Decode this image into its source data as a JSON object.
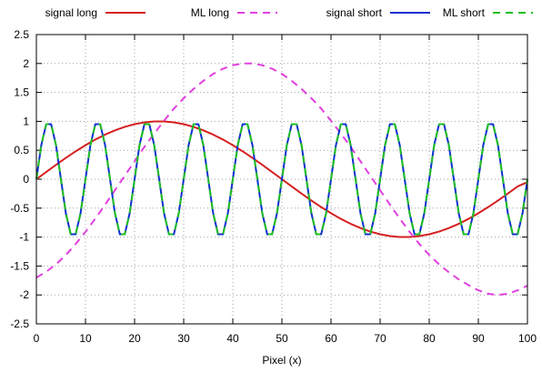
{
  "chart_data": {
    "type": "line",
    "title": "",
    "xlabel": "Pixel (x)",
    "ylabel": "",
    "xlim": [
      0,
      100
    ],
    "ylim": [
      -2.5,
      2.5
    ],
    "xticks": [
      "0",
      "10",
      "20",
      "30",
      "40",
      "50",
      "60",
      "70",
      "80",
      "90",
      "100"
    ],
    "yticks": [
      "2.5",
      "2",
      "1.5",
      "1",
      "0.5",
      "0",
      "-0.5",
      "-1",
      "-1.5",
      "-2",
      "-2.5"
    ],
    "grid": "dotted",
    "legend_position": "top",
    "series": [
      {
        "name": "signal long",
        "color": "#d62020",
        "style": "solid",
        "x": [
          0,
          2,
          4,
          6,
          8,
          10,
          12,
          14,
          16,
          18,
          20,
          22,
          24,
          26,
          28,
          30,
          32,
          34,
          36,
          38,
          40,
          42,
          44,
          46,
          48,
          50,
          52,
          54,
          56,
          58,
          60,
          62,
          64,
          66,
          68,
          70,
          72,
          74,
          76,
          78,
          80,
          82,
          84,
          86,
          88,
          90,
          92,
          94,
          96,
          98,
          100
        ],
        "y": [
          0.0,
          0.125,
          0.249,
          0.368,
          0.482,
          0.588,
          0.685,
          0.771,
          0.844,
          0.905,
          0.951,
          0.982,
          0.998,
          0.998,
          0.982,
          0.951,
          0.905,
          0.844,
          0.771,
          0.685,
          0.588,
          0.482,
          0.368,
          0.249,
          0.125,
          0.0,
          -0.125,
          -0.249,
          -0.368,
          -0.482,
          -0.588,
          -0.685,
          -0.771,
          -0.844,
          -0.905,
          -0.951,
          -0.982,
          -0.998,
          -0.998,
          -0.982,
          -0.951,
          -0.905,
          -0.844,
          -0.771,
          -0.685,
          -0.588,
          -0.482,
          -0.368,
          -0.249,
          -0.125,
          -0.05
        ]
      },
      {
        "name": "ML long",
        "color": "#e040e0",
        "style": "dashed",
        "x": [
          0,
          2,
          4,
          6,
          8,
          10,
          12,
          14,
          16,
          18,
          20,
          22,
          24,
          26,
          28,
          30,
          32,
          34,
          36,
          38,
          40,
          42,
          44,
          46,
          48,
          50,
          52,
          54,
          56,
          58,
          60,
          62,
          64,
          66,
          68,
          70,
          72,
          74,
          76,
          78,
          80,
          82,
          84,
          86,
          88,
          90,
          92,
          94,
          96,
          98,
          100
        ],
        "y": [
          -1.7,
          -1.6,
          -1.47,
          -1.31,
          -1.12,
          -0.91,
          -0.68,
          -0.44,
          -0.19,
          0.06,
          0.31,
          0.56,
          0.79,
          1.01,
          1.22,
          1.4,
          1.56,
          1.7,
          1.82,
          1.91,
          1.97,
          2.0,
          2.0,
          1.97,
          1.91,
          1.82,
          1.7,
          1.56,
          1.4,
          1.22,
          1.01,
          0.79,
          0.56,
          0.31,
          0.06,
          -0.19,
          -0.44,
          -0.68,
          -0.91,
          -1.12,
          -1.31,
          -1.47,
          -1.61,
          -1.73,
          -1.83,
          -1.92,
          -1.98,
          -2.0,
          -1.98,
          -1.92,
          -1.84
        ]
      },
      {
        "name": "signal short",
        "color": "#1030d0",
        "style": "solid",
        "x": [
          0,
          1,
          2,
          3,
          4,
          5,
          6,
          7,
          8,
          9,
          10,
          11,
          12,
          13,
          14,
          15,
          16,
          17,
          18,
          19,
          20,
          21,
          22,
          23,
          24,
          25,
          26,
          27,
          28,
          29,
          30,
          31,
          32,
          33,
          34,
          35,
          36,
          37,
          38,
          39,
          40,
          41,
          42,
          43,
          44,
          45,
          46,
          47,
          48,
          49,
          50,
          51,
          52,
          53,
          54,
          55,
          56,
          57,
          58,
          59,
          60,
          61,
          62,
          63,
          64,
          65,
          66,
          67,
          68,
          69,
          70,
          71,
          72,
          73,
          74,
          75,
          76,
          77,
          78,
          79,
          80,
          81,
          82,
          83,
          84,
          85,
          86,
          87,
          88,
          89,
          90,
          91,
          92,
          93,
          94,
          95,
          96,
          97,
          98,
          99,
          100
        ],
        "y": [
          0.0,
          0.588,
          0.951,
          0.951,
          0.588,
          0.0,
          -0.588,
          -0.951,
          -0.951,
          -0.588,
          0.0,
          0.588,
          0.951,
          0.951,
          0.588,
          0.0,
          -0.588,
          -0.951,
          -0.951,
          -0.588,
          0.0,
          0.588,
          0.951,
          0.951,
          0.588,
          0.0,
          -0.588,
          -0.951,
          -0.951,
          -0.588,
          0.0,
          0.588,
          0.951,
          0.951,
          0.588,
          0.0,
          -0.588,
          -0.951,
          -0.951,
          -0.588,
          0.0,
          0.588,
          0.951,
          0.951,
          0.588,
          0.0,
          -0.588,
          -0.951,
          -0.951,
          -0.588,
          0.0,
          0.588,
          0.951,
          0.951,
          0.588,
          0.0,
          -0.588,
          -0.951,
          -0.951,
          -0.588,
          0.0,
          0.588,
          0.951,
          0.951,
          0.588,
          0.0,
          -0.588,
          -0.951,
          -0.951,
          -0.588,
          0.0,
          0.588,
          0.951,
          0.951,
          0.588,
          0.0,
          -0.588,
          -0.951,
          -0.951,
          -0.588,
          0.0,
          0.588,
          0.951,
          0.951,
          0.588,
          0.0,
          -0.588,
          -0.951,
          -0.951,
          -0.588,
          0.0,
          0.588,
          0.951,
          0.951,
          0.588,
          0.0,
          -0.588,
          -0.951,
          -0.951,
          -0.588,
          0.0
        ]
      },
      {
        "name": "ML short",
        "color": "#20c020",
        "style": "dashed",
        "x": [
          0,
          1,
          2,
          3,
          4,
          5,
          6,
          7,
          8,
          9,
          10,
          11,
          12,
          13,
          14,
          15,
          16,
          17,
          18,
          19,
          20,
          21,
          22,
          23,
          24,
          25,
          26,
          27,
          28,
          29,
          30,
          31,
          32,
          33,
          34,
          35,
          36,
          37,
          38,
          39,
          40,
          41,
          42,
          43,
          44,
          45,
          46,
          47,
          48,
          49,
          50,
          51,
          52,
          53,
          54,
          55,
          56,
          57,
          58,
          59,
          60,
          61,
          62,
          63,
          64,
          65,
          66,
          67,
          68,
          69,
          70,
          71,
          72,
          73,
          74,
          75,
          76,
          77,
          78,
          79,
          80,
          81,
          82,
          83,
          84,
          85,
          86,
          87,
          88,
          89,
          90,
          91,
          92,
          93,
          94,
          95,
          96,
          97,
          98,
          99,
          100
        ],
        "y": [
          0.0,
          0.588,
          0.951,
          0.951,
          0.588,
          0.0,
          -0.588,
          -0.951,
          -0.951,
          -0.588,
          0.0,
          0.588,
          0.951,
          0.951,
          0.588,
          0.0,
          -0.588,
          -0.951,
          -0.951,
          -0.588,
          0.0,
          0.588,
          0.951,
          0.951,
          0.588,
          0.0,
          -0.588,
          -0.951,
          -0.951,
          -0.588,
          0.0,
          0.588,
          0.951,
          0.951,
          0.588,
          0.0,
          -0.588,
          -0.951,
          -0.951,
          -0.588,
          0.0,
          0.588,
          0.951,
          0.951,
          0.588,
          0.0,
          -0.588,
          -0.951,
          -0.951,
          -0.588,
          0.0,
          0.588,
          0.951,
          0.951,
          0.588,
          0.0,
          -0.588,
          -0.951,
          -0.951,
          -0.588,
          0.0,
          0.588,
          0.951,
          0.951,
          0.588,
          0.0,
          -0.588,
          -0.951,
          -0.951,
          -0.588,
          0.0,
          0.588,
          0.951,
          0.951,
          0.588,
          0.0,
          -0.588,
          -0.951,
          -0.951,
          -0.588,
          0.0,
          0.588,
          0.951,
          0.951,
          0.588,
          0.0,
          -0.588,
          -0.951,
          -0.951,
          -0.588,
          0.0,
          0.588,
          0.951,
          0.951,
          0.588,
          0.0,
          -0.588,
          -0.951,
          -0.951,
          -0.588,
          0.0
        ]
      }
    ]
  }
}
